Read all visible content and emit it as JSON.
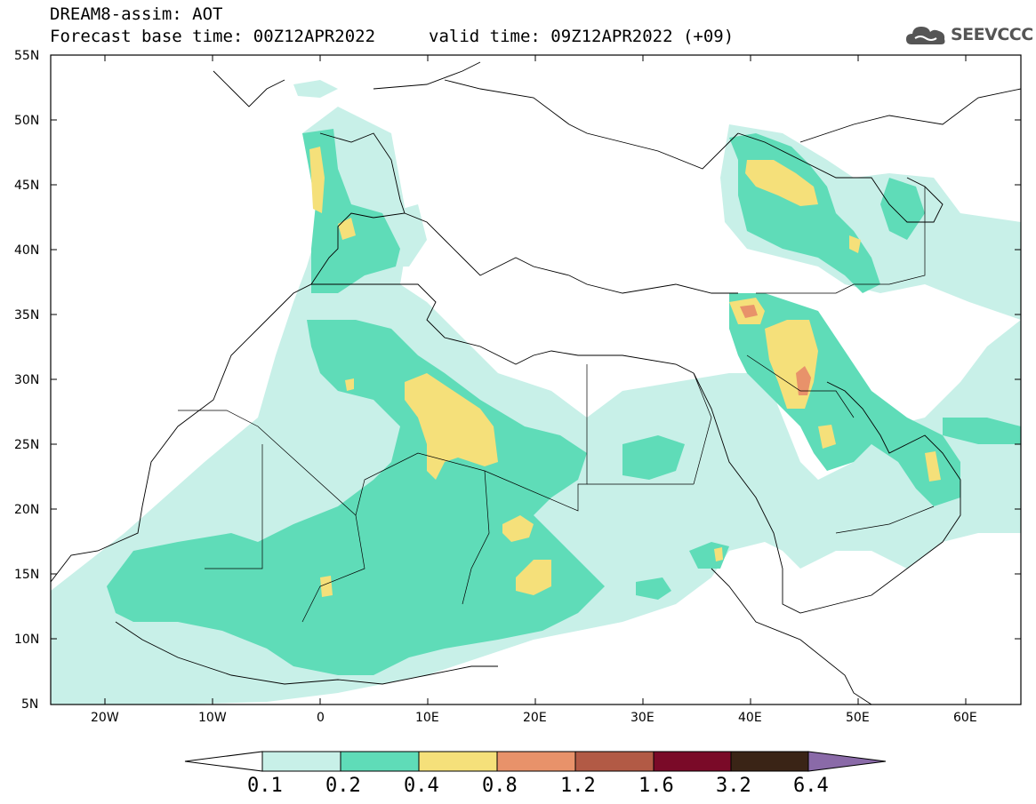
{
  "header": {
    "title": "DREAM8-assim: AOT",
    "base_time": "Forecast base time: 00Z12APR2022",
    "valid_time": "valid time: 09Z12APR2022 (+09)",
    "logo_text": "SEEVCCC"
  },
  "map": {
    "lon_range": [
      -25,
      65
    ],
    "lat_range": [
      5,
      55
    ],
    "lat_ticks": [
      "55N",
      "50N",
      "45N",
      "40N",
      "35N",
      "30N",
      "25N",
      "20N",
      "15N",
      "10N",
      "5N"
    ],
    "lon_ticks": [
      "20W",
      "10W",
      "0",
      "10E",
      "20E",
      "30E",
      "40E",
      "50E",
      "60E"
    ]
  },
  "colorbar": {
    "labels": [
      "0.1",
      "0.2",
      "0.4",
      "0.8",
      "1.2",
      "1.6",
      "3.2",
      "6.4"
    ],
    "colors": [
      "#ffffff",
      "#c8f0e8",
      "#5fdcb8",
      "#f5e07a",
      "#e8926a",
      "#b25a45",
      "#7a0a28",
      "#3a2416",
      "#8a6aa8"
    ]
  },
  "palette": {
    "c1": "#c8f0e8",
    "c2": "#5fdcb8",
    "c3": "#f5e07a",
    "c4": "#e8926a"
  }
}
